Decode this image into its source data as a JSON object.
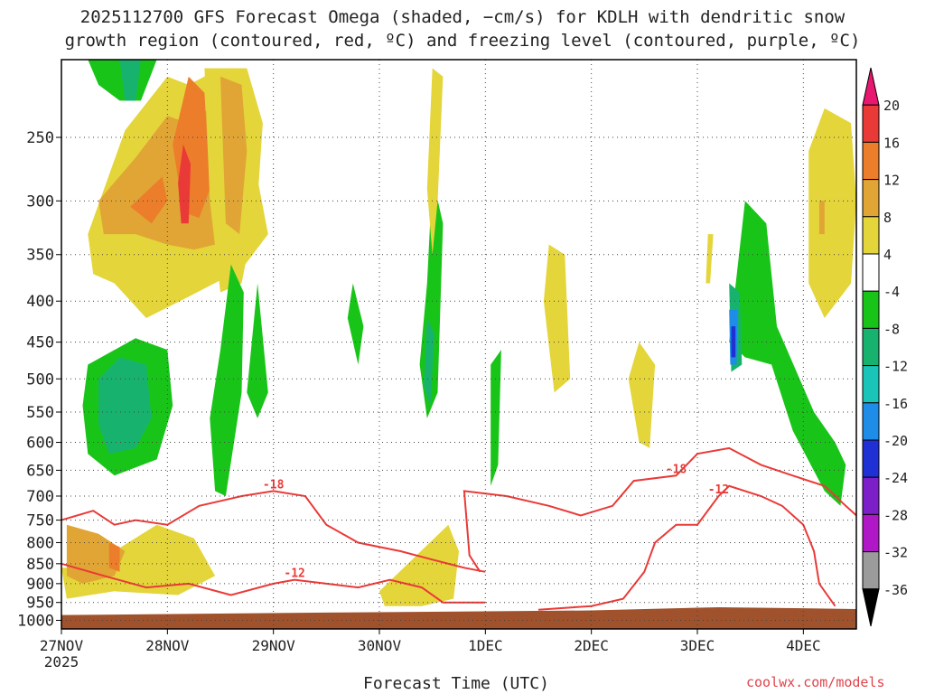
{
  "title_line1": "2025112700 GFS Forecast Omega (shaded, −cm/s) for KDLH with dendritic snow",
  "title_line2": "growth region (contoured, red, ºC) and freezing level (contoured, purple, ºC)",
  "credit": "coolwx.com/models",
  "chart_data": {
    "type": "heatmap",
    "title": "2025112700 GFS Forecast Omega (shaded, −cm/s) for KDLH with dendritic snow growth region (contoured, red, ºC) and freezing level (contoured, purple, ºC)",
    "xlabel": "Forecast Time (UTC)",
    "ylabel": "",
    "x_ticks": [
      "27NOV",
      "28NOV",
      "29NOV",
      "30NOV",
      "1DEC",
      "2DEC",
      "3DEC",
      "4DEC"
    ],
    "x_year_label": "2025",
    "x_range_days": [
      0,
      7.5
    ],
    "y_ticks": [
      250,
      300,
      350,
      400,
      450,
      500,
      550,
      600,
      650,
      700,
      750,
      800,
      850,
      900,
      950,
      1000
    ],
    "y_range_hpa": [
      200,
      1025
    ],
    "y_scale": "log-pressure (inverted)",
    "grid": "dotted",
    "colorbar": {
      "labels": [
        "20",
        "16",
        "12",
        "8",
        "4",
        "-4",
        "-8",
        "-12",
        "-16",
        "-20",
        "-24",
        "-28",
        "-32",
        "-36"
      ],
      "colors": [
        "#e8176f",
        "#ea3a37",
        "#ec7d2a",
        "#e0a534",
        "#e4d53b",
        "#ffffff",
        "#19c419",
        "#17b36e",
        "#18c5b8",
        "#1d8de7",
        "#1f31d4",
        "#7d1fc9",
        "#b017c6",
        "#9b9b9b",
        "#000000"
      ]
    },
    "omega_regions": [
      {
        "cls": 4,
        "poly": [
          [
            0.25,
            860
          ],
          [
            0.9,
            760
          ],
          [
            1.25,
            790
          ],
          [
            1.45,
            880
          ],
          [
            1.1,
            930
          ],
          [
            0.5,
            920
          ],
          [
            0.05,
            940
          ],
          [
            0.0,
            860
          ]
        ]
      },
      {
        "cls": 8,
        "poly": [
          [
            0.05,
            760
          ],
          [
            0.35,
            780
          ],
          [
            0.6,
            820
          ],
          [
            0.5,
            880
          ],
          [
            0.2,
            900
          ],
          [
            0.05,
            880
          ]
        ]
      },
      {
        "cls": 12,
        "poly": [
          [
            0.45,
            800
          ],
          [
            0.55,
            810
          ],
          [
            0.55,
            870
          ],
          [
            0.45,
            860
          ]
        ]
      },
      {
        "cls": 4,
        "poly": [
          [
            0.25,
            330
          ],
          [
            0.6,
            245
          ],
          [
            1.0,
            210
          ],
          [
            1.2,
            215
          ],
          [
            1.5,
            205
          ],
          [
            1.8,
            260
          ],
          [
            1.95,
            330
          ],
          [
            1.7,
            365
          ],
          [
            1.2,
            395
          ],
          [
            0.8,
            420
          ],
          [
            0.5,
            380
          ],
          [
            0.3,
            370
          ]
        ]
      },
      {
        "cls": 8,
        "poly": [
          [
            0.35,
            300
          ],
          [
            0.7,
            265
          ],
          [
            1.0,
            235
          ],
          [
            1.2,
            240
          ],
          [
            1.4,
            230
          ],
          [
            1.55,
            270
          ],
          [
            1.65,
            330
          ],
          [
            1.45,
            340
          ],
          [
            1.25,
            345
          ],
          [
            1.0,
            340
          ],
          [
            0.7,
            330
          ],
          [
            0.4,
            330
          ]
        ]
      },
      {
        "cls": 12,
        "poly": [
          [
            0.65,
            305
          ],
          [
            0.95,
            280
          ],
          [
            1.0,
            300
          ],
          [
            0.85,
            320
          ]
        ]
      },
      {
        "cls": 12,
        "poly": [
          [
            1.05,
            255
          ],
          [
            1.2,
            210
          ],
          [
            1.35,
            220
          ],
          [
            1.4,
            290
          ],
          [
            1.3,
            315
          ],
          [
            1.15,
            310
          ]
        ]
      },
      {
        "cls": 16,
        "poly": [
          [
            1.1,
            285
          ],
          [
            1.15,
            255
          ],
          [
            1.22,
            270
          ],
          [
            1.2,
            320
          ],
          [
            1.13,
            320
          ]
        ]
      },
      {
        "cls": 4,
        "poly": [
          [
            1.35,
            205
          ],
          [
            1.75,
            205
          ],
          [
            1.9,
            240
          ],
          [
            1.85,
            300
          ],
          [
            1.7,
            380
          ],
          [
            1.5,
            390
          ],
          [
            1.4,
            300
          ]
        ]
      },
      {
        "cls": 8,
        "poly": [
          [
            1.5,
            210
          ],
          [
            1.7,
            215
          ],
          [
            1.75,
            260
          ],
          [
            1.68,
            330
          ],
          [
            1.55,
            320
          ]
        ]
      },
      {
        "cls": -4,
        "poly": [
          [
            0.25,
            480
          ],
          [
            0.7,
            445
          ],
          [
            1.0,
            460
          ],
          [
            1.05,
            540
          ],
          [
            0.9,
            630
          ],
          [
            0.5,
            660
          ],
          [
            0.25,
            620
          ],
          [
            0.2,
            540
          ]
        ]
      },
      {
        "cls": -8,
        "poly": [
          [
            0.35,
            500
          ],
          [
            0.55,
            470
          ],
          [
            0.8,
            480
          ],
          [
            0.85,
            560
          ],
          [
            0.7,
            610
          ],
          [
            0.45,
            620
          ],
          [
            0.35,
            570
          ]
        ]
      },
      {
        "cls": -4,
        "poly": [
          [
            0.25,
            200
          ],
          [
            0.9,
            200
          ],
          [
            0.75,
            225
          ],
          [
            0.55,
            225
          ],
          [
            0.35,
            215
          ]
        ]
      },
      {
        "cls": -8,
        "poly": [
          [
            0.55,
            200
          ],
          [
            0.75,
            200
          ],
          [
            0.7,
            225
          ],
          [
            0.6,
            225
          ]
        ]
      },
      {
        "cls": -4,
        "poly": [
          [
            1.6,
            360
          ],
          [
            1.72,
            390
          ],
          [
            1.7,
            520
          ],
          [
            1.55,
            700
          ],
          [
            1.45,
            690
          ],
          [
            1.4,
            560
          ],
          [
            1.5,
            460
          ]
        ]
      },
      {
        "cls": -4,
        "poly": [
          [
            1.85,
            380
          ],
          [
            1.95,
            520
          ],
          [
            1.85,
            560
          ],
          [
            1.75,
            520
          ]
        ]
      },
      {
        "cls": -4,
        "poly": [
          [
            2.75,
            380
          ],
          [
            2.85,
            430
          ],
          [
            2.8,
            480
          ],
          [
            2.7,
            420
          ]
        ]
      },
      {
        "cls": -4,
        "poly": [
          [
            3.5,
            280
          ],
          [
            3.6,
            320
          ],
          [
            3.55,
            520
          ],
          [
            3.45,
            560
          ],
          [
            3.38,
            480
          ],
          [
            3.45,
            380
          ]
        ]
      },
      {
        "cls": -8,
        "poly": [
          [
            3.45,
            420
          ],
          [
            3.52,
            440
          ],
          [
            3.48,
            540
          ],
          [
            3.42,
            510
          ]
        ]
      },
      {
        "cls": 4,
        "poly": [
          [
            3.5,
            205
          ],
          [
            3.6,
            210
          ],
          [
            3.55,
            300
          ],
          [
            3.5,
            350
          ],
          [
            3.45,
            290
          ]
        ]
      },
      {
        "cls": 4,
        "poly": [
          [
            3.0,
            920
          ],
          [
            3.35,
            830
          ],
          [
            3.65,
            760
          ],
          [
            3.75,
            820
          ],
          [
            3.7,
            940
          ],
          [
            3.4,
            960
          ],
          [
            3.05,
            960
          ]
        ]
      },
      {
        "cls": -4,
        "poly": [
          [
            4.05,
            480
          ],
          [
            4.15,
            460
          ],
          [
            4.12,
            640
          ],
          [
            4.05,
            680
          ]
        ]
      },
      {
        "cls": 4,
        "poly": [
          [
            4.6,
            340
          ],
          [
            4.75,
            350
          ],
          [
            4.8,
            500
          ],
          [
            4.65,
            520
          ],
          [
            4.55,
            400
          ]
        ]
      },
      {
        "cls": 4,
        "poly": [
          [
            5.45,
            450
          ],
          [
            5.6,
            480
          ],
          [
            5.55,
            610
          ],
          [
            5.45,
            600
          ],
          [
            5.35,
            500
          ]
        ]
      },
      {
        "cls": -4,
        "poly": [
          [
            6.3,
            450
          ],
          [
            6.45,
            300
          ],
          [
            6.65,
            320
          ],
          [
            6.75,
            430
          ],
          [
            7.1,
            550
          ],
          [
            7.3,
            600
          ],
          [
            7.4,
            640
          ],
          [
            7.35,
            720
          ],
          [
            7.2,
            690
          ],
          [
            6.9,
            580
          ],
          [
            6.7,
            480
          ],
          [
            6.45,
            470
          ]
        ]
      },
      {
        "cls": -8,
        "poly": [
          [
            6.3,
            380
          ],
          [
            6.4,
            390
          ],
          [
            6.42,
            480
          ],
          [
            6.32,
            490
          ]
        ]
      },
      {
        "cls": -16,
        "poly": [
          [
            6.3,
            410
          ],
          [
            6.38,
            410
          ],
          [
            6.37,
            480
          ],
          [
            6.31,
            480
          ]
        ]
      },
      {
        "cls": -20,
        "poly": [
          [
            6.32,
            430
          ],
          [
            6.36,
            430
          ],
          [
            6.36,
            470
          ],
          [
            6.32,
            470
          ]
        ]
      },
      {
        "cls": 4,
        "poly": [
          [
            6.1,
            330
          ],
          [
            6.15,
            330
          ],
          [
            6.12,
            380
          ],
          [
            6.08,
            380
          ]
        ]
      },
      {
        "cls": 4,
        "poly": [
          [
            7.05,
            260
          ],
          [
            7.2,
            230
          ],
          [
            7.45,
            240
          ],
          [
            7.5,
            300
          ],
          [
            7.45,
            380
          ],
          [
            7.2,
            420
          ],
          [
            7.05,
            380
          ]
        ]
      },
      {
        "cls": 8,
        "poly": [
          [
            7.15,
            300
          ],
          [
            7.2,
            300
          ],
          [
            7.2,
            330
          ],
          [
            7.15,
            330
          ]
        ]
      }
    ],
    "contours_red": [
      {
        "label": "-18",
        "points": [
          [
            0,
            750
          ],
          [
            0.3,
            730
          ],
          [
            0.5,
            760
          ],
          [
            0.7,
            750
          ],
          [
            1.0,
            760
          ],
          [
            1.3,
            720
          ],
          [
            1.7,
            700
          ],
          [
            2.0,
            690
          ],
          [
            2.3,
            700
          ],
          [
            2.5,
            760
          ],
          [
            2.8,
            800
          ],
          [
            3.2,
            820
          ],
          [
            3.5,
            840
          ],
          [
            3.8,
            860
          ],
          [
            4.0,
            870
          ]
        ]
      },
      {
        "label": "-12",
        "points": [
          [
            0,
            850
          ],
          [
            0.4,
            880
          ],
          [
            0.8,
            910
          ],
          [
            1.2,
            900
          ],
          [
            1.6,
            930
          ],
          [
            2.0,
            900
          ],
          [
            2.2,
            890
          ],
          [
            2.5,
            900
          ],
          [
            2.8,
            910
          ],
          [
            3.1,
            890
          ],
          [
            3.4,
            910
          ],
          [
            3.6,
            950
          ],
          [
            4.0,
            950
          ]
        ]
      },
      {
        "label": "-18",
        "points": [
          [
            3.95,
            870
          ],
          [
            3.85,
            830
          ],
          [
            3.8,
            690
          ],
          [
            4.2,
            700
          ],
          [
            4.6,
            720
          ],
          [
            4.9,
            740
          ],
          [
            5.2,
            720
          ],
          [
            5.4,
            670
          ],
          [
            5.8,
            660
          ],
          [
            6.0,
            620
          ],
          [
            6.3,
            610
          ],
          [
            6.6,
            640
          ],
          [
            6.9,
            660
          ],
          [
            7.2,
            680
          ],
          [
            7.4,
            720
          ],
          [
            7.5,
            740
          ]
        ]
      },
      {
        "label": "-12",
        "points": [
          [
            4.5,
            970
          ],
          [
            5.0,
            960
          ],
          [
            5.3,
            940
          ],
          [
            5.5,
            870
          ],
          [
            5.6,
            800
          ],
          [
            5.8,
            760
          ],
          [
            6.0,
            760
          ],
          [
            6.2,
            700
          ],
          [
            6.3,
            680
          ],
          [
            6.6,
            700
          ],
          [
            6.8,
            720
          ],
          [
            7.0,
            760
          ],
          [
            7.1,
            820
          ],
          [
            7.15,
            900
          ],
          [
            7.3,
            960
          ]
        ]
      }
    ],
    "terrain_color": "#a0522d"
  }
}
